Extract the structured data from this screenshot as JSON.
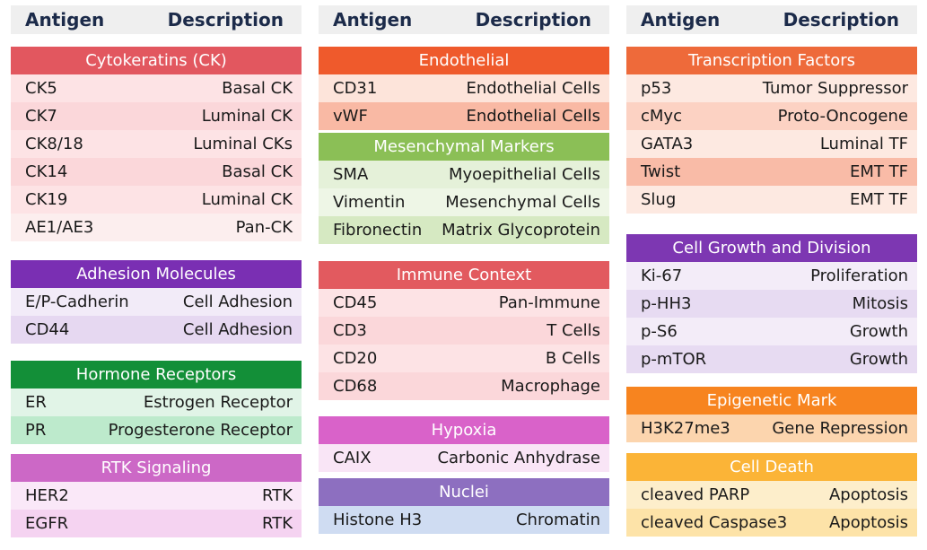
{
  "headers": {
    "antigen": "Antigen",
    "description": "Description"
  },
  "columns": [
    [
      {
        "title": "Cytokeratins (CK)",
        "header_color": "#e2575f",
        "rows": [
          {
            "antigen": "CK5",
            "description": "Basal CK",
            "color": "#fde3e5"
          },
          {
            "antigen": "CK7",
            "description": "Luminal CK",
            "color": "#fbd7da"
          },
          {
            "antigen": "CK8/18",
            "description": "Luminal CKs",
            "color": "#fde3e5"
          },
          {
            "antigen": "CK14",
            "description": "Basal CK",
            "color": "#fbd7da"
          },
          {
            "antigen": "CK19",
            "description": "Luminal CK",
            "color": "#fde3e5"
          },
          {
            "antigen": "AE1/AE3",
            "description": "Pan-CK",
            "color": "#fceeee"
          }
        ]
      },
      {
        "title": "Adhesion Molecules",
        "header_color": "#7a2fb3",
        "rows": [
          {
            "antigen": "E/P-Cadherin",
            "description": "Cell Adhesion",
            "color": "#f2ebf8"
          },
          {
            "antigen": "CD44",
            "description": "Cell Adhesion",
            "color": "#e6d8f1"
          }
        ]
      },
      {
        "title": "Hormone Receptors",
        "header_color": "#138f38",
        "rows": [
          {
            "antigen": "ER",
            "description": "Estrogen Receptor",
            "color": "#e1f4e7"
          },
          {
            "antigen": "PR",
            "description": "Progesterone Receptor",
            "color": "#bdeacc"
          }
        ]
      },
      {
        "title": "RTK Signaling",
        "header_color": "#cc68c6",
        "rows": [
          {
            "antigen": "HER2",
            "description": "RTK",
            "color": "#fae8f8"
          },
          {
            "antigen": "EGFR",
            "description": "RTK",
            "color": "#f5d3f1"
          }
        ]
      }
    ],
    [
      {
        "title": "Endothelial",
        "header_color": "#ef5a2c",
        "rows": [
          {
            "antigen": "CD31",
            "description": "Endothelial Cells",
            "color": "#fde4da"
          },
          {
            "antigen": "vWF",
            "description": "Endothelial Cells",
            "color": "#f9b9a4"
          }
        ]
      },
      {
        "title": "Mesenchymal Markers",
        "header_color": "#8bbf56",
        "rows": [
          {
            "antigen": "SMA",
            "description": "Myoepithelial Cells",
            "color": "#e5f1d9"
          },
          {
            "antigen": "Vimentin",
            "description": "Mesenchymal Cells",
            "color": "#eef6e6"
          },
          {
            "antigen": "Fibronectin",
            "description": "Matrix Glycoprotein",
            "color": "#d6e9c2"
          }
        ]
      },
      {
        "title": "Immune Context",
        "header_color": "#e25a5f",
        "rows": [
          {
            "antigen": "CD45",
            "description": "Pan-Immune",
            "color": "#fde3e5"
          },
          {
            "antigen": "CD3",
            "description": "T Cells",
            "color": "#fbd7da"
          },
          {
            "antigen": "CD20",
            "description": "B Cells",
            "color": "#fde3e5"
          },
          {
            "antigen": "CD68",
            "description": "Macrophage",
            "color": "#fbd7da"
          }
        ]
      },
      {
        "title": "Hypoxia",
        "header_color": "#d962c9",
        "rows": [
          {
            "antigen": "CAIX",
            "description": "Carbonic Anhydrase",
            "color": "#f9e5f6"
          }
        ]
      },
      {
        "title": "Nuclei",
        "header_color": "#8d6fc0",
        "rows": [
          {
            "antigen": "Histone H3",
            "description": "Chromatin",
            "color": "#cfdcf2"
          }
        ]
      }
    ],
    [
      {
        "title": "Transcription Factors",
        "header_color": "#ee6a3a",
        "rows": [
          {
            "antigen": "p53",
            "description": "Tumor Suppressor",
            "color": "#fde9e1"
          },
          {
            "antigen": "cMyc",
            "description": "Proto-Oncogene",
            "color": "#fcd2c3"
          },
          {
            "antigen": "GATA3",
            "description": "Luminal TF",
            "color": "#fde9e1"
          },
          {
            "antigen": "Twist",
            "description": "EMT TF",
            "color": "#f9bba7"
          },
          {
            "antigen": "Slug",
            "description": "EMT TF",
            "color": "#fde9e1"
          }
        ]
      },
      {
        "title": "Cell Growth and Division",
        "header_color": "#7d37b2",
        "rows": [
          {
            "antigen": "Ki-67",
            "description": "Proliferation",
            "color": "#f3ecf8"
          },
          {
            "antigen": "p-HH3",
            "description": "Mitosis",
            "color": "#e7dbf2"
          },
          {
            "antigen": "p-S6",
            "description": "Growth",
            "color": "#f3ecf8"
          },
          {
            "antigen": "p-mTOR",
            "description": "Growth",
            "color": "#e7dbf2"
          }
        ]
      },
      {
        "title": "Epigenetic Mark",
        "header_color": "#f7841f",
        "rows": [
          {
            "antigen": "H3K27me3",
            "description": "Gene Repression",
            "color": "#fcd5ae"
          }
        ]
      },
      {
        "title": "Cell Death",
        "header_color": "#fbb437",
        "rows": [
          {
            "antigen": "cleaved PARP",
            "description": "Apoptosis",
            "color": "#fdeecb"
          },
          {
            "antigen": "cleaved Caspase3",
            "description": "Apoptosis",
            "color": "#fde3a8"
          }
        ]
      }
    ]
  ]
}
